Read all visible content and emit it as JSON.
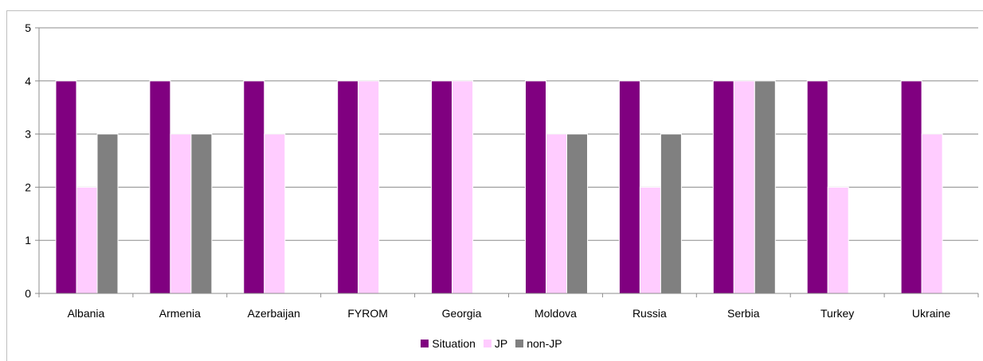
{
  "chart_data": {
    "type": "bar",
    "categories": [
      "Albania",
      "Armenia",
      "Azerbaijan",
      "FYROM",
      "Georgia",
      "Moldova",
      "Russia",
      "Serbia",
      "Turkey",
      "Ukraine"
    ],
    "series": [
      {
        "name": "Situation",
        "color": "#800080",
        "values": [
          4,
          4,
          4,
          4,
          4,
          4,
          4,
          4,
          4,
          4
        ]
      },
      {
        "name": "JP",
        "color": "#ffccff",
        "values": [
          2,
          3,
          3,
          4,
          4,
          3,
          2,
          4,
          2,
          3
        ]
      },
      {
        "name": "non-JP",
        "color": "#808080",
        "values": [
          3,
          3,
          null,
          null,
          null,
          3,
          3,
          4,
          null,
          null
        ]
      }
    ],
    "ylim": [
      0,
      5
    ],
    "yticks": [
      0,
      1,
      2,
      3,
      4,
      5
    ],
    "grid": true,
    "legend_position": "bottom"
  }
}
